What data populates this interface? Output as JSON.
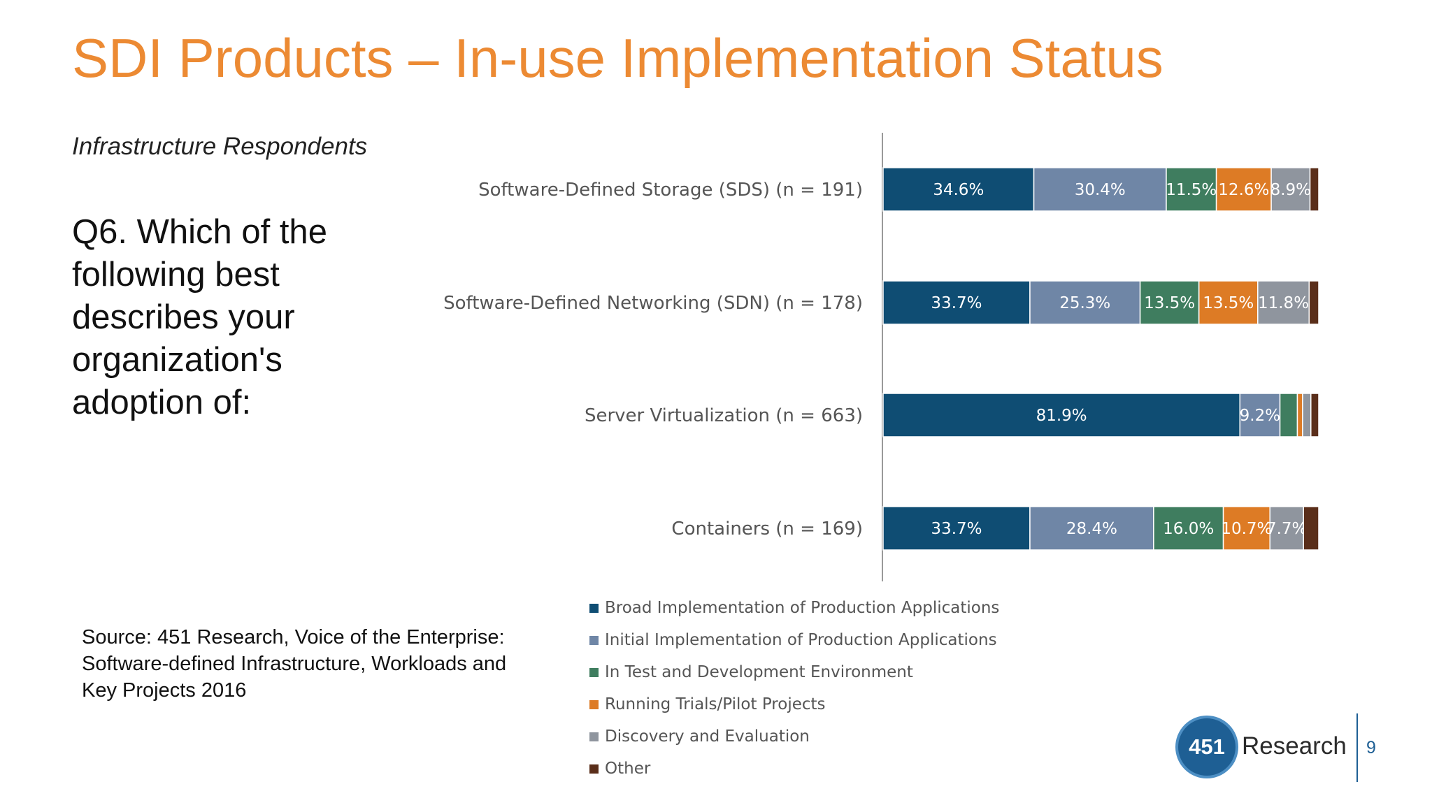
{
  "title": "SDI Products – In-use Implementation Status",
  "subtitle": "Infrastructure Respondents",
  "question": "Q6. Which of the following best describes your organization's adoption of:",
  "source": "Source: 451 Research, Voice of the Enterprise: Software-defined Infrastructure, Workloads and Key Projects 2016",
  "logo": {
    "number": "451",
    "word": "Research"
  },
  "page_number": "9",
  "colors": {
    "title": "#ec8a33",
    "broad": "#0f4d73",
    "initial": "#6f86a6",
    "test": "#3f7d5f",
    "trials": "#dd7b25",
    "discovery": "#8f959e",
    "other": "#5a2e1a"
  },
  "chart_data": {
    "type": "bar",
    "orientation": "horizontal",
    "stacked": true,
    "categories": [
      "Software-Defined Storage (SDS) (n = 191)",
      "Software-Defined Networking (SDN) (n = 178)",
      "Server Virtualization (n = 663)",
      "Containers (n = 169)"
    ],
    "xlim": [
      0,
      100
    ],
    "legend_position": "bottom",
    "series": [
      {
        "name": "Broad Implementation of Production Applications",
        "color": "#0f4d73",
        "values": [
          34.6,
          33.7,
          81.9,
          33.7
        ],
        "labels": [
          "34.6%",
          "33.7%",
          "81.9%",
          "33.7%"
        ]
      },
      {
        "name": "Initial Implementation of Production Applications",
        "color": "#6f86a6",
        "values": [
          30.4,
          25.3,
          9.2,
          28.4
        ],
        "labels": [
          "30.4%",
          "25.3%",
          "9.2%",
          "28.4%"
        ]
      },
      {
        "name": "In Test and Development Environment",
        "color": "#3f7d5f",
        "values": [
          11.5,
          13.5,
          4.0,
          16.0
        ],
        "labels": [
          "11.5%",
          "13.5%",
          "",
          "16.0%"
        ]
      },
      {
        "name": "Running Trials/Pilot Projects",
        "color": "#dd7b25",
        "values": [
          12.6,
          13.5,
          1.2,
          10.7
        ],
        "labels": [
          "12.6%",
          "13.5%",
          "",
          "10.7%"
        ]
      },
      {
        "name": "Discovery and Evaluation",
        "color": "#8f959e",
        "values": [
          8.9,
          11.8,
          1.9,
          7.7
        ],
        "labels": [
          "8.9%",
          "11.8%",
          "",
          "7.7%"
        ]
      },
      {
        "name": "Other",
        "color": "#5a2e1a",
        "values": [
          2.0,
          2.2,
          1.8,
          3.5
        ],
        "labels": [
          "",
          "",
          "",
          ""
        ]
      }
    ]
  }
}
